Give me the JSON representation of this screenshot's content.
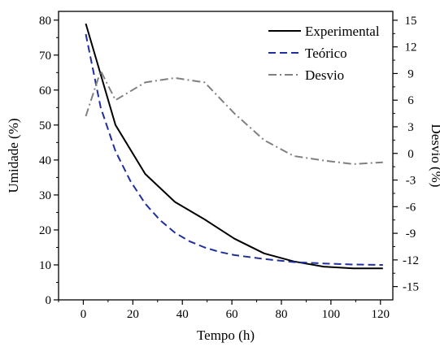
{
  "chart_data": {
    "type": "line",
    "xlabel": "Tempo (h)",
    "ylabel_left": "Umidade (%)",
    "ylabel_right": "Desvio (%)",
    "xlim": [
      -10,
      125
    ],
    "ylim_left": [
      0,
      82.5
    ],
    "ylim_right": [
      -16.5,
      16
    ],
    "x_ticks": [
      "0",
      "20",
      "40",
      "60",
      "80",
      "100",
      "120"
    ],
    "y_ticks_left": [
      "0",
      "10",
      "20",
      "30",
      "40",
      "50",
      "60",
      "70",
      "80"
    ],
    "y_ticks_right": [
      "-15",
      "-12",
      "-9",
      "-6",
      "-3",
      "0",
      "3",
      "6",
      "9",
      "12",
      "15"
    ],
    "legend_position": "top-right",
    "grid": false,
    "series": [
      {
        "name": "Experimental",
        "axis": "left",
        "style": "solid",
        "color": "#000000",
        "x": [
          1,
          13,
          25,
          37,
          49,
          61,
          73,
          85,
          97,
          109,
          121
        ],
        "y": [
          79,
          50,
          36,
          28,
          23,
          17.5,
          13.3,
          11,
          9.5,
          9,
          9
        ]
      },
      {
        "name": "Teórico",
        "axis": "left",
        "style": "dashed",
        "color": "#1f2f9e",
        "x": [
          1,
          7,
          13,
          19,
          25,
          31,
          37,
          43,
          49,
          55,
          61,
          73,
          85,
          97,
          109,
          121
        ],
        "y": [
          76,
          55,
          42.5,
          34,
          27.5,
          22.8,
          19.2,
          16.7,
          15,
          13.7,
          12.8,
          11.7,
          10.8,
          10.4,
          10.1,
          10
        ]
      },
      {
        "name": "Desvio",
        "axis": "right",
        "style": "dashdot",
        "color": "#808080",
        "x": [
          1,
          7,
          13,
          25,
          37,
          49,
          61,
          73,
          85,
          97,
          109,
          121
        ],
        "y": [
          4.2,
          9.3,
          6,
          8,
          8.5,
          8,
          4.5,
          1.5,
          -0.3,
          -0.8,
          -1.2,
          -1
        ]
      }
    ]
  }
}
